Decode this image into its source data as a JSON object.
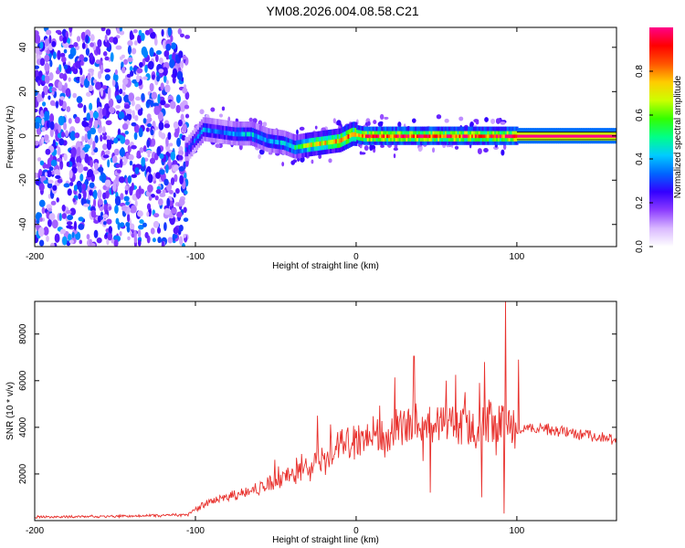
{
  "title": "YM08.2026.004.08.58.C21",
  "chart_data": [
    {
      "type": "heatmap",
      "panel": "spectrogram",
      "xlabel": "Height of straight line (km)",
      "ylabel": "Frequency (Hz)",
      "xlim": [
        -200,
        162
      ],
      "ylim": [
        -50,
        49
      ],
      "xticks": [
        -200,
        -100,
        0,
        100
      ],
      "xtick_labels": [
        "-200",
        "-100",
        "0",
        "100"
      ],
      "yticks": [
        -40,
        -20,
        0,
        20,
        40
      ],
      "ytick_labels": [
        "-40",
        "-20",
        "0",
        "20",
        "40"
      ],
      "colorbar": {
        "label": "Normalized spectral amplitude",
        "range": [
          0,
          1
        ],
        "ticks": [
          0,
          0.2,
          0.4,
          0.6,
          0.8
        ],
        "tick_labels": [
          "0.0",
          "0.2",
          "0.4",
          "0.6",
          "0.8"
        ],
        "colors": [
          "#ffffff",
          "#d9b8ff",
          "#8c3cff",
          "#3300ff",
          "#0066ff",
          "#00ccff",
          "#00ff88",
          "#33ff00",
          "#ccff00",
          "#ffcc00",
          "#ff5500",
          "#ff0000",
          "#ff0088"
        ]
      },
      "noise_region_x": [
        -200,
        -105
      ],
      "signal_track": {
        "x": [
          -105,
          -95,
          -85,
          -75,
          -65,
          -55,
          -45,
          -38,
          -30,
          -20,
          -10,
          -2,
          5,
          20,
          40,
          60,
          80,
          90,
          100,
          162
        ],
        "freq": [
          -6,
          3,
          2,
          1,
          1,
          -2,
          -3,
          -5,
          -4,
          -3,
          -2,
          1,
          0,
          0,
          0,
          0,
          0,
          0,
          0,
          0
        ],
        "amplitude": [
          0.3,
          0.4,
          0.35,
          0.4,
          0.45,
          0.4,
          0.45,
          0.5,
          0.7,
          0.75,
          0.8,
          0.85,
          0.95,
          0.95,
          0.95,
          0.95,
          0.9,
          0.95,
          1.0,
          1.0
        ]
      }
    },
    {
      "type": "line",
      "panel": "snr",
      "xlabel": "Height of straight line (km)",
      "ylabel": "SNR (10 * v/v)",
      "xlim": [
        -200,
        162
      ],
      "ylim": [
        0,
        9400
      ],
      "xticks": [
        -200,
        -100,
        0,
        100
      ],
      "xtick_labels": [
        "-200",
        "-100",
        "0",
        "100"
      ],
      "yticks": [
        2000,
        4000,
        6000,
        8000
      ],
      "ytick_labels": [
        "2000",
        "4000",
        "6000",
        "8000"
      ],
      "series": [
        {
          "name": "SNR",
          "color": "#e8312d",
          "envelope_x": [
            -200,
            -150,
            -105,
            -100,
            -90,
            -80,
            -70,
            -60,
            -50,
            -40,
            -30,
            -20,
            -10,
            0,
            10,
            20,
            30,
            40,
            50,
            60,
            70,
            80,
            90,
            100,
            110,
            120,
            130,
            140,
            150,
            162
          ],
          "envelope_y": [
            150,
            180,
            250,
            500,
            800,
            1000,
            1150,
            1400,
            1700,
            1900,
            2250,
            2750,
            3200,
            3350,
            3600,
            3800,
            4100,
            4200,
            4200,
            4100,
            4200,
            4300,
            4100,
            3900,
            4000,
            3900,
            3800,
            3700,
            3600,
            3450
          ],
          "spikes": [
            {
              "x": -24,
              "y": 4500
            },
            {
              "x": 36,
              "y": 7050
            },
            {
              "x": 56,
              "y": 6000
            },
            {
              "x": 62,
              "y": 6250
            },
            {
              "x": 80,
              "y": 6800
            },
            {
              "x": 93,
              "y": 9400
            },
            {
              "x": 101,
              "y": 6900
            },
            {
              "x": 92,
              "y": 300
            },
            {
              "x": 46,
              "y": 1200
            },
            {
              "x": 78,
              "y": 1000
            }
          ]
        }
      ]
    }
  ]
}
